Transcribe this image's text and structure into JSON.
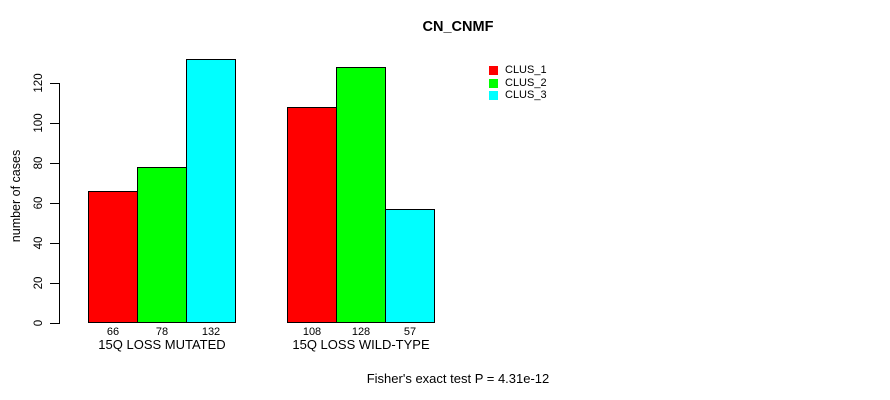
{
  "title": "CN_CNMF",
  "footer": "Fisher's exact test P = 4.31e-12",
  "chart_data": {
    "type": "bar",
    "title": "CN_CNMF",
    "xlabel": "",
    "ylabel": "number of cases",
    "categories": [
      "15Q LOSS MUTATED",
      "15Q LOSS WILD-TYPE"
    ],
    "series": [
      {
        "name": "CLUS_1",
        "color": "#ff0000",
        "values": [
          66,
          108
        ]
      },
      {
        "name": "CLUS_2",
        "color": "#00ff00",
        "values": [
          78,
          128
        ]
      },
      {
        "name": "CLUS_3",
        "color": "#00ffff",
        "values": [
          132,
          57
        ]
      }
    ],
    "bar_value_labels": [
      [
        66,
        78,
        132
      ],
      [
        108,
        128,
        57
      ]
    ],
    "yticks": [
      0,
      20,
      40,
      60,
      80,
      100,
      120
    ],
    "ylim": [
      0,
      132
    ],
    "grid": false,
    "legend_position": "top-right",
    "legend_entries": [
      "CLUS_1",
      "CLUS_2",
      "CLUS_3"
    ],
    "annotation": "Fisher's exact test P = 4.31e-12"
  }
}
